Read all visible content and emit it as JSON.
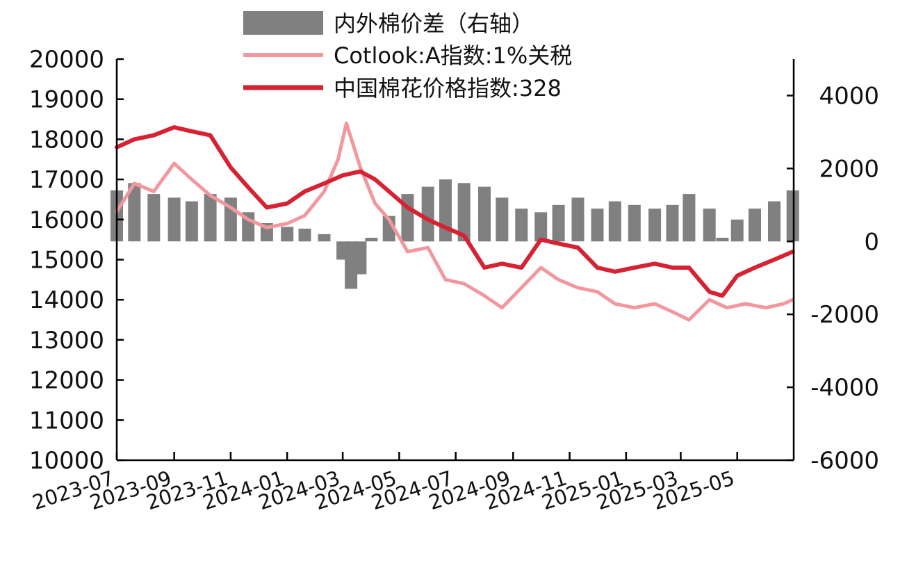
{
  "chart_data": {
    "type": "line",
    "legend_placement": "top-center",
    "grid": false,
    "x_range": [
      "2023-07",
      "2025-07"
    ],
    "x_ticks": [
      "2023-07",
      "2023-09",
      "2023-11",
      "2024-01",
      "2024-03",
      "2024-05",
      "2024-07",
      "2024-09",
      "2024-11",
      "2025-01",
      "2025-03",
      "2025-05"
    ],
    "y_left": {
      "ticks": [
        "20000",
        "19000",
        "18000",
        "17000",
        "16000",
        "15000",
        "14000",
        "13000",
        "12000",
        "11000",
        "10000"
      ],
      "ylim": [
        10000,
        20000
      ]
    },
    "y_right": {
      "ticks": [
        "4000",
        "2000",
        "0",
        "-2000",
        "-4000",
        "-6000"
      ],
      "ylim": [
        -6000,
        5000
      ]
    },
    "series": [
      {
        "name": "内外棉价差（右轴）",
        "type": "bar",
        "axis": "right",
        "color": "#808080",
        "x": [
          "2023-07-01",
          "2023-07-20",
          "2023-08-10",
          "2023-09-01",
          "2023-09-20",
          "2023-10-10",
          "2023-11-01",
          "2023-11-20",
          "2023-12-10",
          "2024-01-01",
          "2024-01-20",
          "2024-02-10",
          "2024-03-01",
          "2024-03-10",
          "2024-03-20",
          "2024-04-01",
          "2024-04-20",
          "2024-05-10",
          "2024-06-01",
          "2024-06-20",
          "2024-07-10",
          "2024-08-01",
          "2024-08-20",
          "2024-09-10",
          "2024-10-01",
          "2024-10-20",
          "2024-11-10",
          "2024-12-01",
          "2024-12-20",
          "2025-01-10",
          "2025-02-01",
          "2025-02-20",
          "2025-03-10",
          "2025-04-01",
          "2025-04-15",
          "2025-05-01",
          "2025-05-20",
          "2025-06-10",
          "2025-06-30"
        ],
        "values": [
          1400,
          1600,
          1300,
          1200,
          1100,
          1300,
          1200,
          800,
          500,
          400,
          350,
          200,
          -500,
          -1300,
          -900,
          100,
          700,
          1300,
          1500,
          1700,
          1600,
          1500,
          1200,
          900,
          800,
          1000,
          1200,
          900,
          1100,
          1000,
          900,
          1000,
          1300,
          900,
          100,
          600,
          900,
          1100,
          1400
        ]
      },
      {
        "name": "Cotlook:A指数:1%关税",
        "type": "line",
        "axis": "left",
        "color": "#f2979e",
        "x": [
          "2023-07-01",
          "2023-07-20",
          "2023-08-10",
          "2023-09-01",
          "2023-09-20",
          "2023-10-10",
          "2023-11-01",
          "2023-11-20",
          "2023-12-10",
          "2024-01-01",
          "2024-01-20",
          "2024-02-10",
          "2024-02-25",
          "2024-03-05",
          "2024-03-20",
          "2024-04-05",
          "2024-04-20",
          "2024-05-10",
          "2024-06-01",
          "2024-06-20",
          "2024-07-10",
          "2024-08-01",
          "2024-08-20",
          "2024-09-10",
          "2024-10-01",
          "2024-10-20",
          "2024-11-10",
          "2024-12-01",
          "2024-12-20",
          "2025-01-10",
          "2025-02-01",
          "2025-02-20",
          "2025-03-10",
          "2025-04-01",
          "2025-04-20",
          "2025-05-10",
          "2025-06-01",
          "2025-06-20",
          "2025-06-30"
        ],
        "values": [
          16200,
          16900,
          16700,
          17400,
          17000,
          16600,
          16300,
          16000,
          15800,
          15900,
          16100,
          16700,
          17500,
          18400,
          17300,
          16400,
          16000,
          15200,
          15300,
          14500,
          14400,
          14100,
          13800,
          14300,
          14800,
          14500,
          14300,
          14200,
          13900,
          13800,
          13900,
          13700,
          13500,
          14000,
          13800,
          13900,
          13800,
          13900,
          14000
        ]
      },
      {
        "name": "中国棉花价格指数:328",
        "type": "line",
        "axis": "left",
        "color": "#d62232",
        "x": [
          "2023-07-01",
          "2023-07-20",
          "2023-08-10",
          "2023-09-01",
          "2023-09-20",
          "2023-10-10",
          "2023-11-01",
          "2023-11-20",
          "2023-12-10",
          "2024-01-01",
          "2024-01-20",
          "2024-02-10",
          "2024-03-01",
          "2024-03-20",
          "2024-04-05",
          "2024-04-20",
          "2024-05-10",
          "2024-06-01",
          "2024-06-20",
          "2024-07-10",
          "2024-08-01",
          "2024-08-20",
          "2024-09-10",
          "2024-10-01",
          "2024-10-20",
          "2024-11-10",
          "2024-12-01",
          "2024-12-20",
          "2025-01-10",
          "2025-02-01",
          "2025-02-20",
          "2025-03-10",
          "2025-04-01",
          "2025-04-15",
          "2025-05-01",
          "2025-05-20",
          "2025-06-10",
          "2025-06-30"
        ],
        "values": [
          17800,
          18000,
          18100,
          18300,
          18200,
          18100,
          17300,
          16800,
          16300,
          16400,
          16700,
          16900,
          17100,
          17200,
          17000,
          16700,
          16300,
          16000,
          15800,
          15600,
          14800,
          14900,
          14800,
          15500,
          15400,
          15300,
          14800,
          14700,
          14800,
          14900,
          14800,
          14800,
          14200,
          14100,
          14600,
          14800,
          15000,
          15200
        ]
      }
    ]
  }
}
